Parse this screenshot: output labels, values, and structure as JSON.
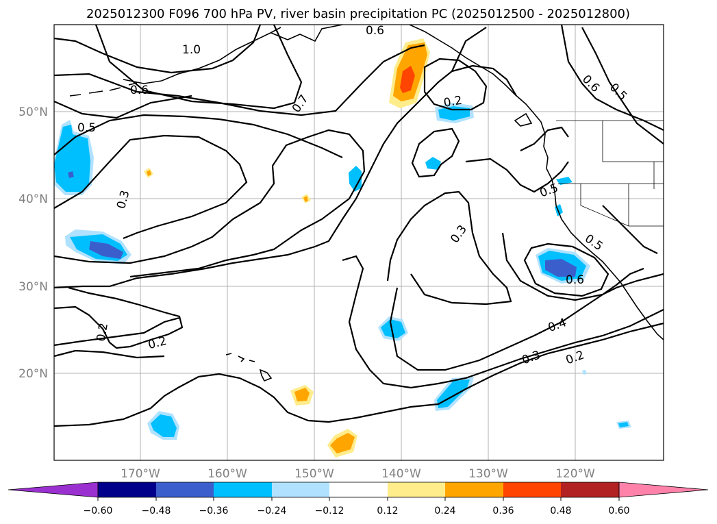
{
  "title": "2025012300 F096 700 hPa PV, river basin precipitation PC (2025012500 - 2025012800)",
  "lat_labels": [
    "50°N",
    "40°N",
    "30°N",
    "20°N"
  ],
  "lon_labels": [
    "170°W",
    "160°W",
    "150°W",
    "140°W",
    "130°W",
    "120°W"
  ],
  "contour_labels": [
    "0.6",
    "1.0",
    "0.6",
    "0.7",
    "0.5",
    "0.3",
    "0.2",
    "0.2",
    "0.2",
    "0.6",
    "0.5",
    "0.5",
    "0.3",
    "0.5",
    "0.6",
    "0.4",
    "0.3",
    "0.2"
  ],
  "colorbar": {
    "tick_labels": [
      "−0.60",
      "−0.48",
      "−0.36",
      "−0.24",
      "−0.12",
      "0.12",
      "0.24",
      "0.36",
      "0.48",
      "0.60"
    ],
    "colors": [
      "#9b30d0",
      "#00008b",
      "#3a5fcd",
      "#00bfff",
      "#b0e2ff",
      "#ffffff",
      "#ffec8b",
      "#ffa500",
      "#ff4500",
      "#b22222",
      "#ff82ab"
    ]
  }
}
